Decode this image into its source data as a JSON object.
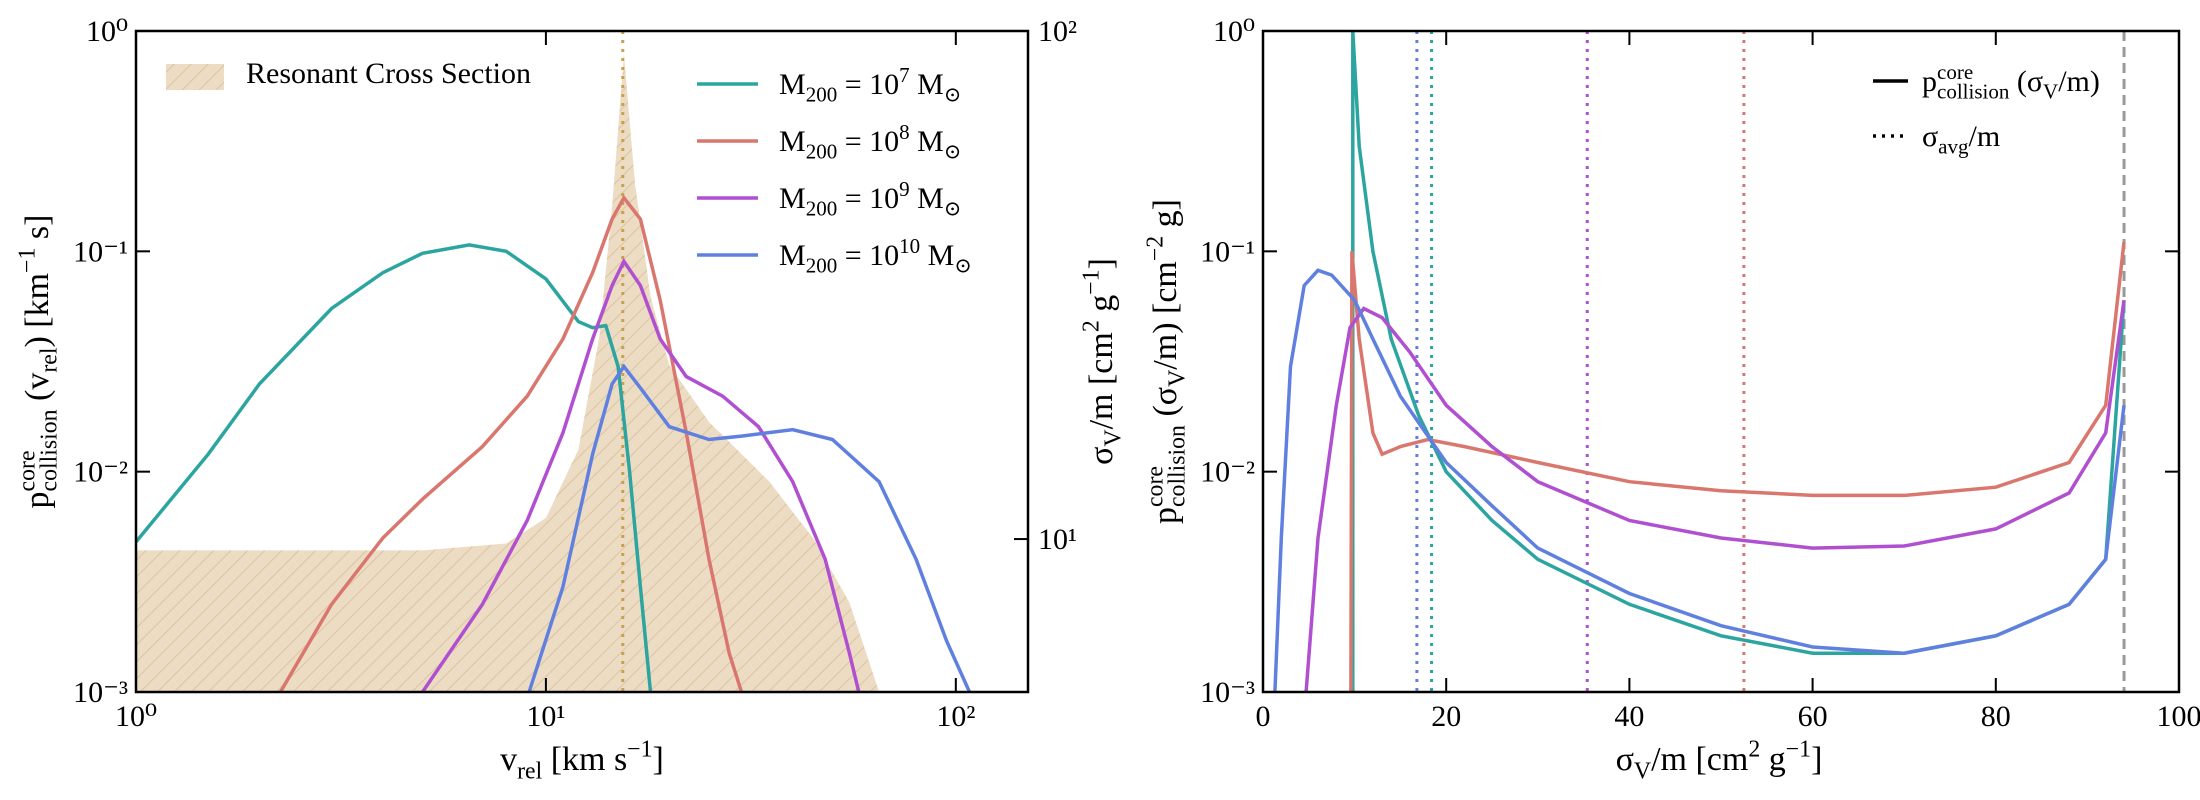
{
  "chart_data": [
    {
      "type": "line",
      "xlabel": "v_{rel} [km s^{−1}]",
      "ylabel": "p^{core}_{collision} (v_{rel}) [km^{−1} s]",
      "y2label": "σ_{V}/m [cm^{2} g^{−1}]",
      "xscale": "log",
      "yscale": "log",
      "y2scale": "log",
      "xlim": [
        1,
        150
      ],
      "ylim": [
        0.001,
        1
      ],
      "y2lim": [
        5,
        100
      ],
      "xticks": [
        {
          "value": 1,
          "label": "10⁰"
        },
        {
          "value": 10,
          "label": "10¹"
        },
        {
          "value": 100,
          "label": "10²"
        }
      ],
      "yticks": [
        {
          "value": 0.001,
          "label": "10⁻³"
        },
        {
          "value": 0.01,
          "label": "10⁻²"
        },
        {
          "value": 0.1,
          "label": "10⁻¹"
        },
        {
          "value": 1,
          "label": "10⁰"
        }
      ],
      "y2ticks": [
        {
          "value": 10,
          "label": "10¹"
        },
        {
          "value": 100,
          "label": "10²"
        }
      ],
      "area": {
        "name": "Resonant Cross Section",
        "color": "#ead9bf",
        "hatch": "#d9bf98",
        "axis": "y2",
        "x": [
          1,
          5,
          8,
          10,
          12,
          13.5,
          14.5,
          15.5,
          16.5,
          18,
          20,
          25,
          35,
          45,
          55,
          65
        ],
        "values": [
          9.5,
          9.5,
          9.8,
          11,
          15,
          25,
          45,
          90,
          50,
          30,
          22,
          17,
          13,
          10,
          7.5,
          5
        ]
      },
      "vlines": [
        {
          "x": 15.4,
          "color": "#c8a050",
          "style": "dotted"
        }
      ],
      "series": [
        {
          "name": "M_{200} = 10^{7} M_{⊙}",
          "color": "#2ca5a0",
          "x": [
            1,
            1.5,
            2,
            3,
            4,
            5,
            6.5,
            8,
            10,
            12,
            13,
            14,
            15,
            16,
            17,
            18
          ],
          "values": [
            0.0048,
            0.012,
            0.025,
            0.055,
            0.08,
            0.098,
            0.107,
            0.1,
            0.075,
            0.048,
            0.045,
            0.046,
            0.03,
            0.01,
            0.003,
            0.001
          ]
        },
        {
          "name": "M_{200} = 10^{8} M_{⊙}",
          "color": "#d9776e",
          "x": [
            2.25,
            3,
            4,
            5,
            7,
            9,
            11,
            13,
            14.5,
            15.5,
            17,
            19,
            22,
            25,
            28,
            30
          ],
          "values": [
            0.001,
            0.0025,
            0.005,
            0.0075,
            0.013,
            0.022,
            0.04,
            0.08,
            0.14,
            0.175,
            0.14,
            0.06,
            0.015,
            0.004,
            0.0015,
            0.001
          ]
        },
        {
          "name": "M_{200} = 10^{9} M_{⊙}",
          "color": "#b050d0",
          "x": [
            5,
            7,
            9,
            11,
            13,
            14.5,
            15.5,
            17,
            19,
            22,
            27,
            33,
            40,
            48,
            55,
            58
          ],
          "values": [
            0.001,
            0.0025,
            0.006,
            0.015,
            0.04,
            0.07,
            0.09,
            0.07,
            0.04,
            0.027,
            0.022,
            0.016,
            0.009,
            0.004,
            0.0015,
            0.001
          ]
        },
        {
          "name": "M_{200} = 10^{10} M_{⊙}",
          "color": "#6080e0",
          "x": [
            9.1,
            11,
            13,
            14.5,
            15.5,
            17,
            20,
            25,
            30,
            40,
            50,
            65,
            80,
            95,
            108
          ],
          "values": [
            0.001,
            0.003,
            0.012,
            0.025,
            0.03,
            0.024,
            0.016,
            0.014,
            0.0145,
            0.0155,
            0.014,
            0.009,
            0.004,
            0.0017,
            0.001
          ]
        }
      ]
    },
    {
      "type": "line",
      "xlabel": "σ_{V}/m [cm^{2} g^{−1}]",
      "ylabel": "p^{core}_{collision} (σ_{V}/m) [cm^{−2} g]",
      "xscale": "linear",
      "yscale": "log",
      "xlim": [
        0,
        100
      ],
      "ylim": [
        0.001,
        1
      ],
      "xticks": [
        0,
        20,
        40,
        60,
        80,
        100
      ],
      "yticks": [
        {
          "value": 0.001,
          "label": "10⁻³"
        },
        {
          "value": 0.01,
          "label": "10⁻²"
        },
        {
          "value": 0.1,
          "label": "10⁻¹"
        },
        {
          "value": 1,
          "label": "10⁰"
        }
      ],
      "legend": [
        {
          "label": "p^{core}_{collision} (σ_{V}/m)",
          "style": "solid"
        },
        {
          "label": "σ_{avg}/m",
          "style": "dotted"
        }
      ],
      "vlines": [
        {
          "x": 16.8,
          "color": "#6080e0",
          "style": "dotted"
        },
        {
          "x": 18.4,
          "color": "#2ca5a0",
          "style": "dotted"
        },
        {
          "x": 35.4,
          "color": "#b050d0",
          "style": "dotted"
        },
        {
          "x": 52.5,
          "color": "#d9776e",
          "style": "dotted"
        },
        {
          "x": 94,
          "color": "#999999",
          "style": "dashed"
        }
      ],
      "series": [
        {
          "color": "#2ca5a0",
          "x": [
            9.8,
            9.8,
            10.5,
            12,
            14,
            17,
            20,
            25,
            30,
            40,
            50,
            60,
            70,
            80,
            88,
            92,
            94
          ],
          "values": [
            0.001,
            1,
            0.3,
            0.1,
            0.04,
            0.018,
            0.01,
            0.006,
            0.004,
            0.0025,
            0.0018,
            0.0015,
            0.0015,
            0.0018,
            0.0025,
            0.004,
            0.06
          ]
        },
        {
          "color": "#d9776e",
          "x": [
            9.6,
            9.7,
            10.5,
            12,
            13,
            15,
            18,
            22,
            30,
            40,
            50,
            60,
            70,
            80,
            88,
            92,
            94
          ],
          "values": [
            0.001,
            0.1,
            0.04,
            0.015,
            0.012,
            0.013,
            0.014,
            0.013,
            0.011,
            0.009,
            0.0082,
            0.0078,
            0.0078,
            0.0085,
            0.011,
            0.02,
            0.11
          ]
        },
        {
          "color": "#b050d0",
          "x": [
            4.7,
            6,
            8,
            9.5,
            11,
            13,
            16,
            20,
            25,
            30,
            40,
            50,
            60,
            70,
            80,
            88,
            92,
            94
          ],
          "values": [
            0.001,
            0.005,
            0.02,
            0.045,
            0.055,
            0.05,
            0.035,
            0.02,
            0.013,
            0.009,
            0.006,
            0.005,
            0.0045,
            0.0046,
            0.0055,
            0.008,
            0.015,
            0.06
          ]
        },
        {
          "color": "#6080e0",
          "x": [
            1.3,
            2,
            3,
            4.5,
            6,
            7.5,
            10,
            12,
            15,
            20,
            25,
            30,
            40,
            50,
            60,
            70,
            80,
            88,
            92,
            94
          ],
          "values": [
            0.001,
            0.005,
            0.03,
            0.07,
            0.082,
            0.078,
            0.06,
            0.04,
            0.022,
            0.011,
            0.007,
            0.0045,
            0.0028,
            0.002,
            0.0016,
            0.0015,
            0.0018,
            0.0025,
            0.004,
            0.02
          ]
        }
      ]
    }
  ]
}
